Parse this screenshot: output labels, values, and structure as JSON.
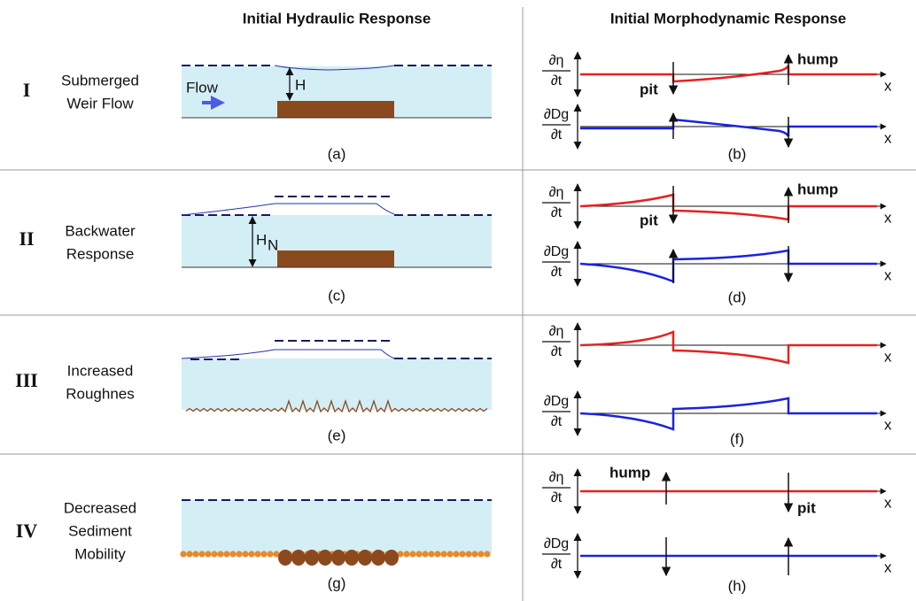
{
  "headers": {
    "hydraulic": "Initial Hydraulic Response",
    "morphodynamic": "Initial Morphodynamic Response"
  },
  "rows": [
    {
      "numeral": "I",
      "label": [
        "Submerged",
        "Weir Flow"
      ],
      "caption_left": "(a)",
      "caption_right": "(b)",
      "flow": "Flow",
      "depth": "H",
      "hump": "hump",
      "pit": "pit",
      "eta_label": {
        "num": "∂η",
        "den": "∂t"
      },
      "dg_label": {
        "num": "∂Dg",
        "den": "∂t"
      },
      "x_label": [
        "x",
        "x"
      ]
    },
    {
      "numeral": "II",
      "label": [
        "Backwater",
        "Response"
      ],
      "caption_left": "(c)",
      "caption_right": "(d)",
      "depth": "H",
      "depth_sub": "N",
      "hump": "hump",
      "pit": "pit",
      "eta_label": {
        "num": "∂η",
        "den": "∂t"
      },
      "dg_label": {
        "num": "∂Dg",
        "den": "∂t"
      },
      "x_label": [
        "x",
        "x"
      ]
    },
    {
      "numeral": "III",
      "label": [
        "Increased",
        "Roughnes"
      ],
      "caption_left": "(e)",
      "caption_right": "(f)",
      "eta_label": {
        "num": "∂η",
        "den": "∂t"
      },
      "dg_label": {
        "num": "∂Dg",
        "den": "∂t"
      },
      "x_label": [
        "x",
        "x"
      ]
    },
    {
      "numeral": "IV",
      "label": [
        "Decreased",
        "Sediment",
        "Mobility"
      ],
      "caption_left": "(g)",
      "caption_right": "(h)",
      "hump": "hump",
      "pit": "pit",
      "eta_label": {
        "num": "∂η",
        "den": "∂t"
      },
      "dg_label": {
        "num": "∂Dg",
        "den": "∂t"
      },
      "x_label": [
        "x",
        "x"
      ]
    }
  ]
}
